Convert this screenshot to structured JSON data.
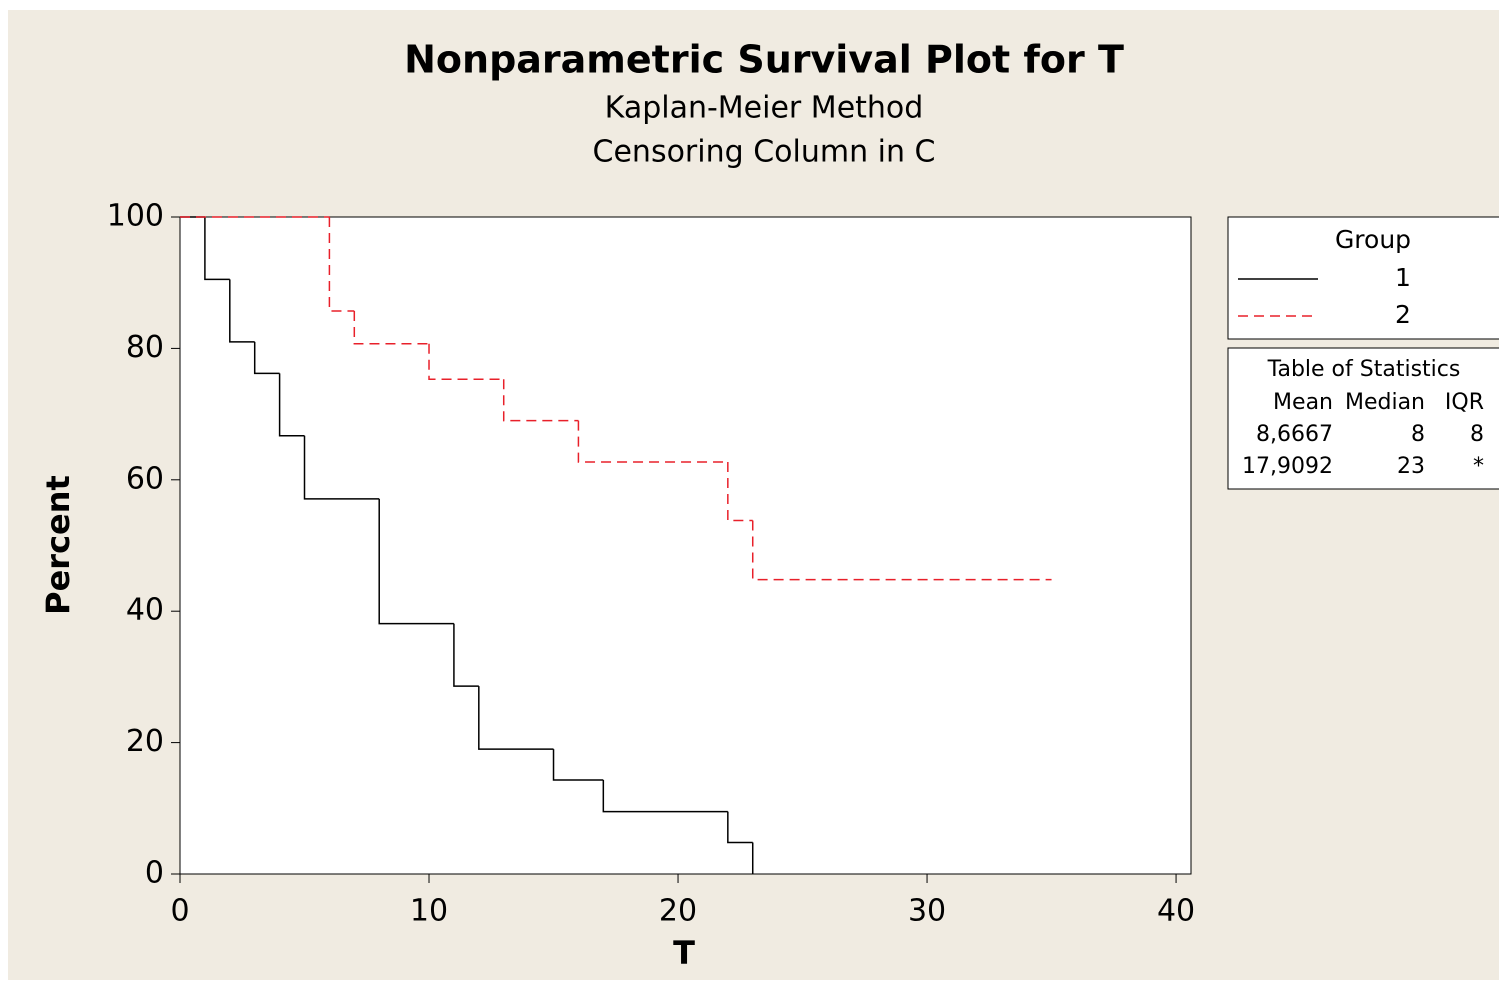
{
  "chart_data": {
    "type": "step",
    "title": "Nonparametric Survival Plot for T",
    "subtitle": [
      "Kaplan-Meier Method",
      "Censoring Column in C"
    ],
    "xlabel": "T",
    "ylabel": "Percent",
    "xlim": [
      0,
      40.6
    ],
    "xticks": [
      0,
      10,
      20,
      30,
      40
    ],
    "ylim": [
      0,
      100
    ],
    "yticks": [
      0,
      20,
      40,
      60,
      80,
      100
    ],
    "legend_position": "right",
    "legend_title": "Group",
    "series": [
      {
        "name": "1",
        "color": "#000000",
        "dash": false,
        "x": [
          0,
          1,
          2,
          3,
          4,
          5,
          8,
          11,
          12,
          15,
          17,
          22,
          23
        ],
        "values": [
          100,
          90.5,
          81,
          76.2,
          66.7,
          57.1,
          38.1,
          28.6,
          19,
          14.3,
          9.5,
          4.8,
          0
        ]
      },
      {
        "name": "2",
        "color": "#e8202a",
        "dash": true,
        "x": [
          0,
          6,
          7,
          10,
          13,
          16,
          22,
          23,
          35
        ],
        "values": [
          100,
          85.7,
          80.7,
          75.3,
          69,
          62.7,
          53.8,
          44.8,
          44.8
        ]
      }
    ],
    "stats_table": {
      "title": "Table of Statistics",
      "headers": [
        "Mean",
        "Median",
        "IQR"
      ],
      "rows": [
        [
          "8,6667",
          "8",
          "8"
        ],
        [
          "17,9092",
          "23",
          "*"
        ]
      ]
    }
  }
}
